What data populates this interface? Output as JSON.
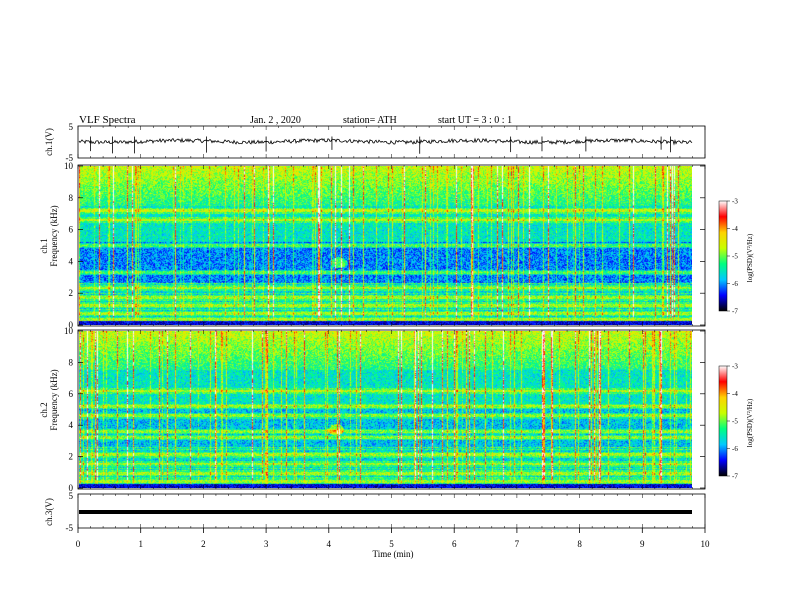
{
  "header": {
    "title": "VLF Spectra",
    "date": "Jan. 2 , 2020",
    "station": "station= ATH",
    "start": "start UT = 3 : 0 : 1"
  },
  "colors": {
    "spectrogram_base": "#0b0b8a",
    "waveform": "#000000",
    "cbar_stops": [
      "#000000",
      "#0000ff",
      "#00c8ff",
      "#00ff80",
      "#c8ff00",
      "#ffd200",
      "#ff0000",
      "#ffffff"
    ]
  },
  "chart_data": [
    {
      "type": "line",
      "panel": "ch1-waveform",
      "ylabel": "ch.1(V)",
      "ylim": [
        -5,
        5
      ],
      "yticks": [
        "5",
        "-5"
      ],
      "xlim": [
        0,
        10
      ],
      "baseline_value": 0.2,
      "noise_amplitude": 0.6
    },
    {
      "type": "heatmap",
      "panel": "ch1-spectrogram",
      "ylabel_line1": "ch.1",
      "ylabel_line2": "Frequency (kHz)",
      "ylim": [
        0,
        10
      ],
      "yticks": [
        "0",
        "2",
        "4",
        "6",
        "8",
        "10"
      ],
      "xlim": [
        0,
        10
      ],
      "colorbar": {
        "label": "log(PSD)(V²/Hz)",
        "range": [
          -7,
          -3
        ],
        "ticks": [
          "-3",
          "-4",
          "-5",
          "-6",
          "-7"
        ]
      },
      "features": {
        "bright_lines_khz": [
          0.3,
          0.7,
          1.2,
          1.7,
          2.3,
          3.3,
          5.0,
          6.6,
          7.2
        ],
        "blob": {
          "time_min": 4.15,
          "freq_khz": 3.9
        }
      }
    },
    {
      "type": "heatmap",
      "panel": "ch2-spectrogram",
      "ylabel_line1": "ch.2",
      "ylabel_line2": "Frequency (kHz)",
      "ylim": [
        0,
        10
      ],
      "yticks": [
        "0",
        "2",
        "4",
        "6",
        "8",
        "10"
      ],
      "xlim": [
        0,
        10
      ],
      "colorbar": {
        "label": "log(PSD)(V²/Hz)",
        "range": [
          -7,
          -3
        ],
        "ticks": [
          "-3",
          "-4",
          "-5",
          "-6",
          "-7"
        ]
      },
      "features": {
        "bright_lines_khz": [
          0.4,
          0.9,
          1.5,
          2.1,
          3.2,
          3.6,
          4.6,
          5.2,
          6.2
        ],
        "blob": {
          "time_min": 4.1,
          "freq_khz": 3.7
        }
      }
    },
    {
      "type": "line",
      "panel": "ch3-waveform",
      "ylabel": "ch.3(V)",
      "ylim": [
        -5,
        5
      ],
      "yticks": [
        "5",
        "-5"
      ],
      "xlim": [
        0,
        10
      ],
      "baseline_value": 0.0
    }
  ],
  "xaxis": {
    "label": "Time (min)",
    "ticks": [
      "0",
      "1",
      "2",
      "3",
      "4",
      "5",
      "6",
      "7",
      "8",
      "9",
      "10"
    ]
  }
}
